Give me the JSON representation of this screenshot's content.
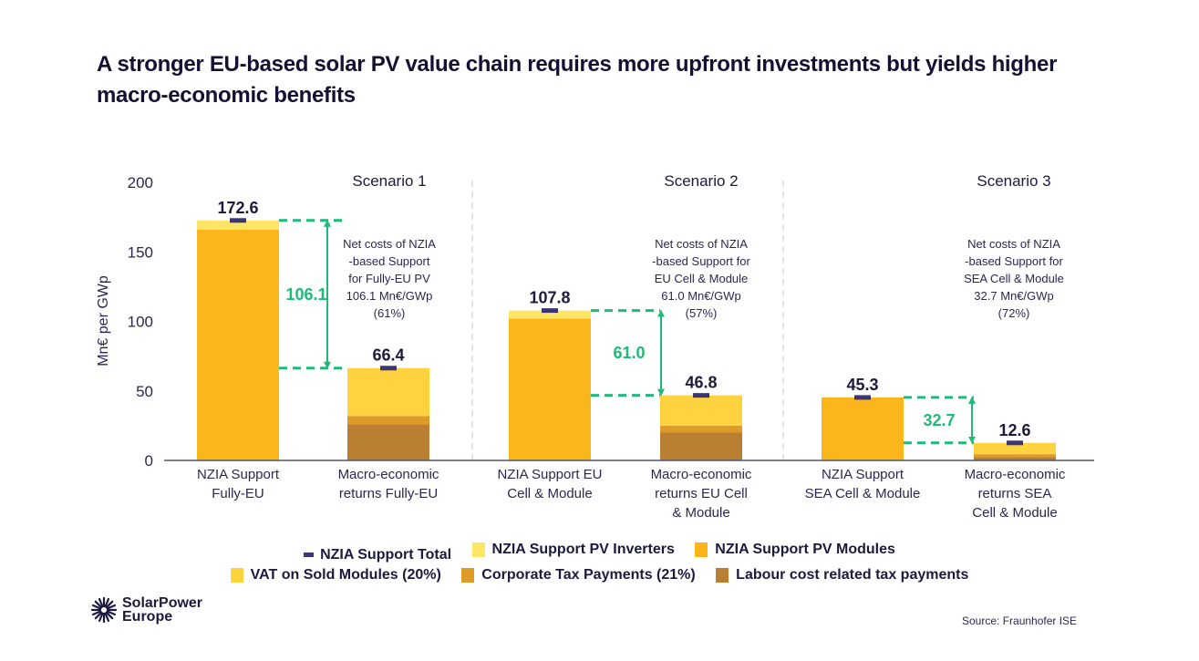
{
  "title": "A stronger EU-based solar PV value chain requires more upfront investments but yields higher macro-economic benefits",
  "source": "Source: Fraunhofer ISE",
  "logo": {
    "line1": "SolarPower",
    "line2": "Europe",
    "icon": "sun-burst-icon"
  },
  "colors": {
    "inverters": "#ffe566",
    "modules": "#fbb61c",
    "vat": "#ffd23f",
    "corporate": "#dd9c28",
    "labour": "#b98034",
    "total_marker": "#3b3576",
    "diff": "#1fba78",
    "axis": "#55566a",
    "separator": "#c8c8cc"
  },
  "chart_data": {
    "type": "bar",
    "stacked": true,
    "title": "A stronger EU-based solar PV value chain requires more upfront investments but yields higher macro-economic benefits",
    "xlabel": "",
    "ylabel": "Mn€ per GWp",
    "ylim": [
      0,
      200
    ],
    "yticks": [
      0,
      50,
      100,
      150,
      200
    ],
    "grid": false,
    "legend_position": "bottom",
    "scenarios": [
      "Scenario 1",
      "Scenario 2",
      "Scenario 3"
    ],
    "categories": [
      [
        "NZIA Support",
        "Fully-EU"
      ],
      [
        "Macro-economic",
        "returns Fully-EU"
      ],
      [
        "NZIA Support EU",
        "Cell & Module"
      ],
      [
        "Macro-economic",
        "returns EU Cell",
        "& Module"
      ],
      [
        "NZIA Support",
        "SEA Cell & Module"
      ],
      [
        "Macro-economic",
        "returns SEA",
        "Cell & Module"
      ]
    ],
    "series": [
      {
        "key": "modules",
        "name": "NZIA Support PV Modules",
        "values": [
          166.0,
          0,
          102.0,
          0,
          45.3,
          0
        ]
      },
      {
        "key": "inverters",
        "name": "NZIA Support PV Inverters",
        "values": [
          6.6,
          0,
          5.8,
          0,
          0,
          0
        ]
      },
      {
        "key": "labour",
        "name": "Labour cost related tax payments",
        "values": [
          0,
          26.0,
          0,
          20.0,
          0,
          2.5
        ]
      },
      {
        "key": "corporate",
        "name": "Corporate Tax Payments (21%)",
        "values": [
          0,
          6.0,
          0,
          5.0,
          0,
          2.0
        ]
      },
      {
        "key": "vat",
        "name": "VAT on Sold Modules (20%)",
        "values": [
          0,
          34.4,
          0,
          21.8,
          0,
          8.1
        ]
      }
    ],
    "totals": [
      "172.6",
      "66.4",
      "107.8",
      "46.8",
      "45.3",
      "12.6"
    ],
    "total_values": [
      172.6,
      66.4,
      107.8,
      46.8,
      45.3,
      12.6
    ],
    "differences": [
      {
        "label": "106.1",
        "from": 172.6,
        "to": 66.4,
        "note": [
          "Net costs of NZIA",
          "-based Support",
          "for Fully-EU PV",
          "106.1 Mn€/GWp",
          "(61%)"
        ]
      },
      {
        "label": "61.0",
        "from": 107.8,
        "to": 46.8,
        "note": [
          "Net costs of NZIA",
          "-based Support for",
          "EU Cell & Module",
          "61.0 Mn€/GWp",
          "(57%)"
        ]
      },
      {
        "label": "32.7",
        "from": 45.3,
        "to": 12.6,
        "note": [
          "Net costs of NZIA",
          "-based Support for",
          "SEA Cell & Module",
          "32.7 Mn€/GWp",
          "(72%)"
        ]
      }
    ],
    "legend": [
      [
        {
          "key": "total",
          "label": "NZIA Support Total",
          "marker": "dash"
        },
        {
          "key": "inverters",
          "label": "NZIA Support PV Inverters",
          "marker": "square"
        },
        {
          "key": "modules",
          "label": "NZIA Support PV Modules",
          "marker": "square"
        }
      ],
      [
        {
          "key": "vat",
          "label": "VAT on Sold Modules (20%)",
          "marker": "square"
        },
        {
          "key": "corporate",
          "label": "Corporate Tax Payments (21%)",
          "marker": "square"
        },
        {
          "key": "labour",
          "label": "Labour cost related tax payments",
          "marker": "square"
        }
      ]
    ]
  }
}
